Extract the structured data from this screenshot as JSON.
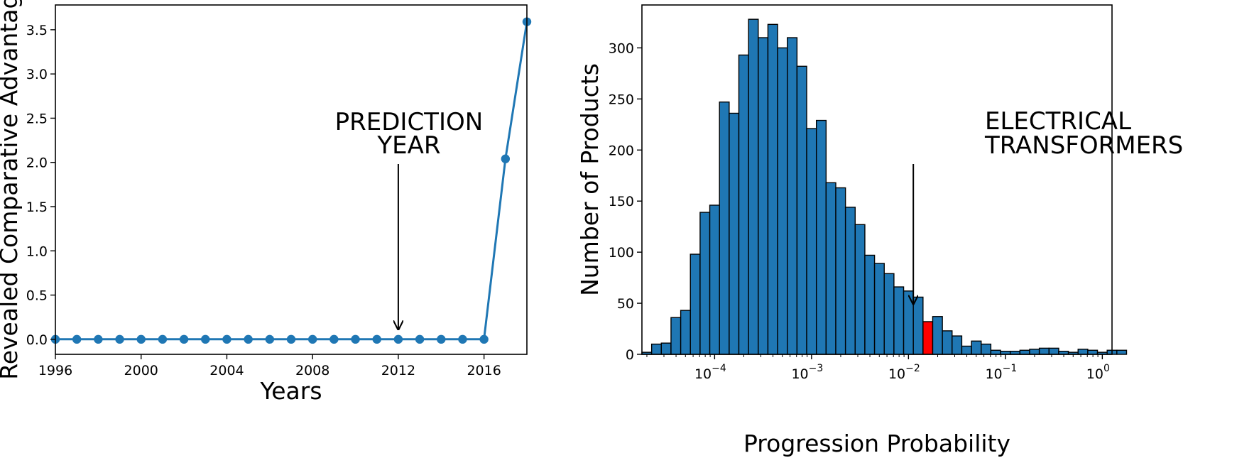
{
  "chart_data": [
    {
      "type": "line",
      "xlabel": "Years",
      "ylabel": "Revealed Comparative Advantage",
      "xlim": [
        1996,
        2018
      ],
      "ylim": [
        -0.17,
        3.78
      ],
      "xticks": [
        {
          "value": 1996,
          "label": "1996"
        },
        {
          "value": 2000,
          "label": "2000"
        },
        {
          "value": 2004,
          "label": "2004"
        },
        {
          "value": 2008,
          "label": "2008"
        },
        {
          "value": 2012,
          "label": "2012"
        },
        {
          "value": 2016,
          "label": "2016"
        }
      ],
      "yticks": [
        {
          "value": 0.0,
          "label": "0.0"
        },
        {
          "value": 0.5,
          "label": "0.5"
        },
        {
          "value": 1.0,
          "label": "1.0"
        },
        {
          "value": 1.5,
          "label": "1.5"
        },
        {
          "value": 2.0,
          "label": "2.0"
        },
        {
          "value": 2.5,
          "label": "2.5"
        },
        {
          "value": 3.0,
          "label": "3.0"
        },
        {
          "value": 3.5,
          "label": "3.5"
        }
      ],
      "series": [
        {
          "color": "#1f77b4",
          "x": [
            1996,
            1997,
            1998,
            1999,
            2000,
            2001,
            2002,
            2003,
            2004,
            2005,
            2006,
            2007,
            2008,
            2009,
            2010,
            2011,
            2012,
            2013,
            2014,
            2015,
            2016,
            2017,
            2018
          ],
          "y": [
            0,
            0,
            0,
            0,
            0,
            0,
            0,
            0,
            0,
            0,
            0,
            0,
            0,
            0,
            0,
            0,
            0,
            0,
            0,
            0,
            0,
            2.04,
            3.59
          ]
        }
      ],
      "annotation": {
        "lines": [
          "PREDICTION",
          "YEAR"
        ],
        "x": 2012,
        "y": 0.0
      }
    },
    {
      "type": "bar",
      "subtype": "histogram",
      "xlabel": "Progression Probability",
      "ylabel": "Number of Products",
      "xscale": "log",
      "xlim_log10": [
        -4.75,
        0.1
      ],
      "ylim": [
        0,
        342
      ],
      "xticks": [
        {
          "log10": -4,
          "base": "10",
          "exp": "−4"
        },
        {
          "log10": -3,
          "base": "10",
          "exp": "−3"
        },
        {
          "log10": -2,
          "base": "10",
          "exp": "−2"
        },
        {
          "log10": -1,
          "base": "10",
          "exp": "−1"
        },
        {
          "log10": 0,
          "base": "10",
          "exp": "0"
        }
      ],
      "yticks": [
        {
          "value": 0,
          "label": "0"
        },
        {
          "value": 50,
          "label": "50"
        },
        {
          "value": 100,
          "label": "100"
        },
        {
          "value": 150,
          "label": "150"
        },
        {
          "value": 200,
          "label": "200"
        },
        {
          "value": 250,
          "label": "250"
        },
        {
          "value": 300,
          "label": "300"
        }
      ],
      "bin_start_log10": -4.75,
      "bin_width_log10": 0.1,
      "counts": [
        2,
        10,
        11,
        36,
        43,
        98,
        139,
        146,
        247,
        236,
        293,
        328,
        310,
        323,
        300,
        310,
        282,
        221,
        229,
        168,
        163,
        144,
        127,
        97,
        89,
        79,
        66,
        62,
        56,
        32,
        37,
        23,
        18,
        8,
        13,
        10,
        4,
        3,
        3,
        4,
        5,
        6,
        6,
        3,
        2,
        5,
        4,
        2,
        4,
        4
      ],
      "bar_color": "#1f77b4",
      "highlight_index": 29,
      "highlight_color": "#ff0000",
      "annotation": {
        "lines": [
          "ELECTRICAL",
          "TRANSFORMERS"
        ],
        "x_log10": -1.95,
        "y": 48
      }
    }
  ]
}
